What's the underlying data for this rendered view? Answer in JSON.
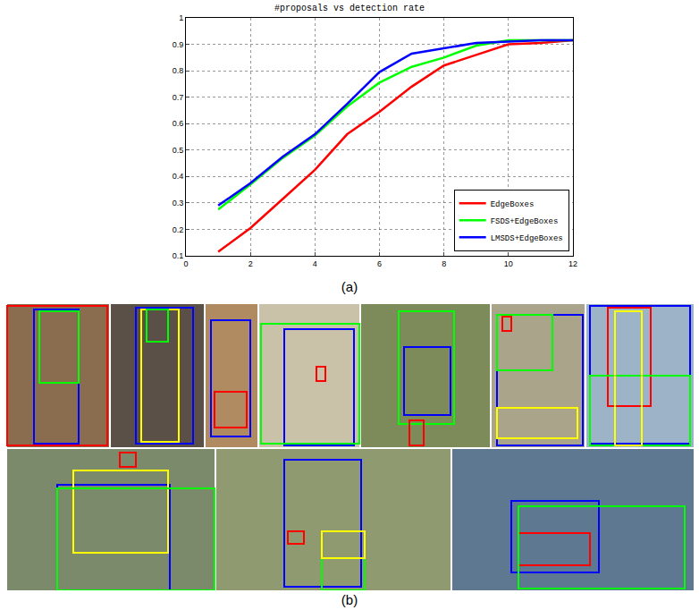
{
  "chart_data": {
    "type": "line",
    "title": "#proposals vs detection rate",
    "x": [
      1,
      2,
      3,
      4,
      5,
      6,
      7,
      8,
      9,
      10,
      11,
      12
    ],
    "series": [
      {
        "name": "EdgeBoxes",
        "color": "#ff0000",
        "line_style": "solid",
        "values": [
          0.115,
          0.205,
          0.315,
          0.425,
          0.56,
          0.645,
          0.74,
          0.82,
          0.86,
          0.9,
          0.905,
          0.915
        ]
      },
      {
        "name": "FSDS+EdgeBoxes",
        "color": "#00ff00",
        "line_style": "solid",
        "values": [
          0.275,
          0.37,
          0.47,
          0.555,
          0.665,
          0.755,
          0.815,
          0.85,
          0.895,
          0.915,
          0.915,
          0.915
        ]
      },
      {
        "name": "LMSDS+EdgeBoxes",
        "color": "#0000ff",
        "line_style": "solid",
        "values": [
          0.29,
          0.375,
          0.475,
          0.56,
          0.675,
          0.795,
          0.865,
          0.885,
          0.905,
          0.91,
          0.915,
          0.915
        ]
      }
    ],
    "xlim": [
      0,
      12
    ],
    "xticks": [
      0,
      2,
      4,
      6,
      8,
      10,
      12
    ],
    "ylim": [
      0.1,
      1
    ],
    "yticks": [
      0.1,
      0.2,
      0.3,
      0.4,
      0.5,
      0.6,
      0.7,
      0.8,
      0.9,
      1
    ],
    "grid": true,
    "legend": "lower right"
  },
  "captions": [
    "(a)",
    "(b)"
  ]
}
